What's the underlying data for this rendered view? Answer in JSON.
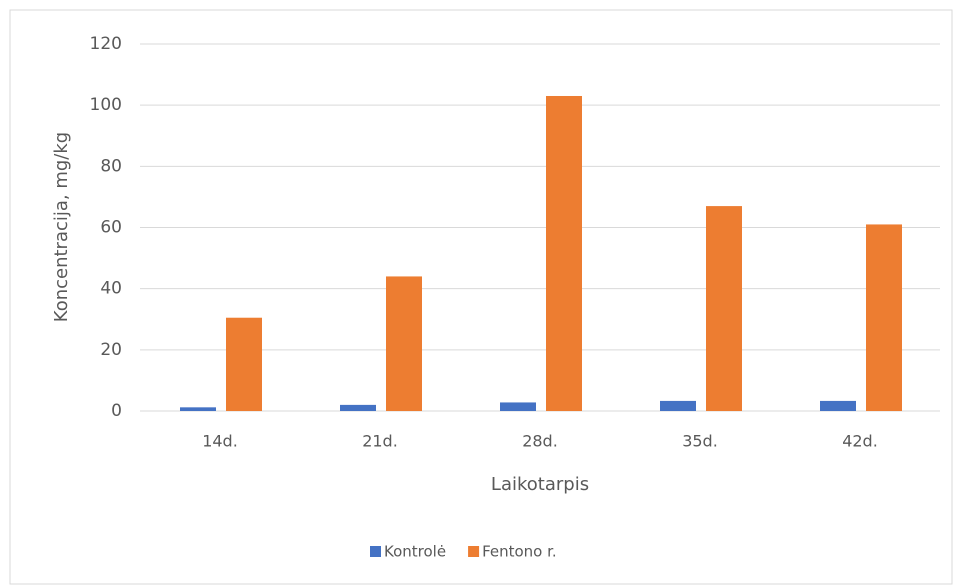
{
  "chart_data": {
    "type": "bar",
    "y_label": "Koncentracija, mg/kg",
    "x_label": "Laikotarpis",
    "categories": [
      "14d.",
      "21d.",
      "28d.",
      "35d.",
      "42d."
    ],
    "series": [
      {
        "name": "Kontrolė",
        "color": "#4472c4",
        "values": [
          1.2,
          2,
          2.8,
          3.3,
          3.3
        ]
      },
      {
        "name": "Fentono r.",
        "color": "#ed7d31",
        "values": [
          30.5,
          44,
          103,
          67,
          61
        ]
      }
    ],
    "ylim": [
      0,
      120
    ],
    "yticks": [
      0,
      20,
      40,
      60,
      80,
      100,
      120
    ],
    "grid": true,
    "legend": "bottom"
  }
}
